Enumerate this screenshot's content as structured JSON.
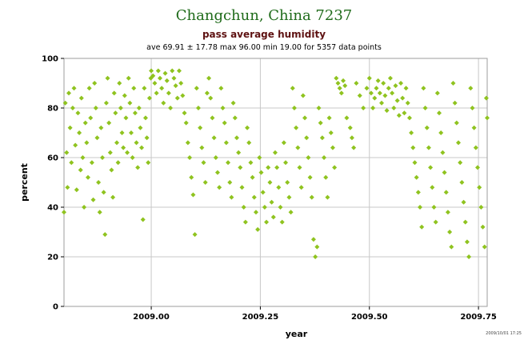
{
  "chart_data": {
    "type": "scatter",
    "title": "Changchun, China 7237",
    "subtitle": "pass average humidity",
    "stats": "ave 69.91 ± 17.78 max 96.00 min 19.00 for 5357 data points",
    "xlabel": "year",
    "ylabel": "percent",
    "stamp": "2009/10/01 17:25",
    "xlim": [
      2008.8,
      2009.77
    ],
    "ylim": [
      0,
      100
    ],
    "x_ticks": [
      {
        "value": 2009.0,
        "label": "2009.00"
      },
      {
        "value": 2009.25,
        "label": "2009.25"
      },
      {
        "value": 2009.5,
        "label": "2009.50"
      },
      {
        "value": 2009.75,
        "label": "2009.75"
      }
    ],
    "y_ticks": [
      0,
      20,
      40,
      60,
      80,
      100
    ],
    "grid": true,
    "marker": "diamond",
    "point_color": "#8fc31f",
    "series": [
      {
        "points": [
          [
            2008.8,
            38
          ],
          [
            2008.803,
            82
          ],
          [
            2008.806,
            62
          ],
          [
            2008.808,
            48
          ],
          [
            2008.811,
            86
          ],
          [
            2008.814,
            72
          ],
          [
            2008.817,
            58
          ],
          [
            2008.82,
            80
          ],
          [
            2008.823,
            88
          ],
          [
            2008.826,
            65
          ],
          [
            2008.829,
            47
          ],
          [
            2008.832,
            78
          ],
          [
            2008.835,
            70
          ],
          [
            2008.838,
            55
          ],
          [
            2008.84,
            84
          ],
          [
            2008.843,
            60
          ],
          [
            2008.846,
            40
          ],
          [
            2008.849,
            74
          ],
          [
            2008.852,
            66
          ],
          [
            2008.855,
            52
          ],
          [
            2008.858,
            88
          ],
          [
            2008.861,
            76
          ],
          [
            2008.864,
            58
          ],
          [
            2008.867,
            43
          ],
          [
            2008.87,
            90
          ],
          [
            2008.873,
            80
          ],
          [
            2008.876,
            68
          ],
          [
            2008.879,
            50
          ],
          [
            2008.882,
            38
          ],
          [
            2008.885,
            72
          ],
          [
            2008.888,
            60
          ],
          [
            2008.891,
            46
          ],
          [
            2008.894,
            29
          ],
          [
            2008.897,
            82
          ],
          [
            2008.9,
            92
          ],
          [
            2008.903,
            74
          ],
          [
            2008.906,
            62
          ],
          [
            2008.909,
            55
          ],
          [
            2008.912,
            44
          ],
          [
            2008.915,
            86
          ],
          [
            2008.918,
            78
          ],
          [
            2008.921,
            66
          ],
          [
            2008.924,
            58
          ],
          [
            2008.927,
            90
          ],
          [
            2008.93,
            80
          ],
          [
            2008.933,
            70
          ],
          [
            2008.936,
            64
          ],
          [
            2008.939,
            85
          ],
          [
            2008.942,
            76
          ],
          [
            2008.945,
            62
          ],
          [
            2008.948,
            92
          ],
          [
            2008.951,
            82
          ],
          [
            2008.954,
            70
          ],
          [
            2008.957,
            60
          ],
          [
            2008.96,
            88
          ],
          [
            2008.963,
            78
          ],
          [
            2008.966,
            66
          ],
          [
            2008.969,
            56
          ],
          [
            2008.972,
            80
          ],
          [
            2008.975,
            72
          ],
          [
            2008.978,
            64
          ],
          [
            2008.981,
            35
          ],
          [
            2008.984,
            88
          ],
          [
            2008.987,
            76
          ],
          [
            2008.99,
            68
          ],
          [
            2008.993,
            58
          ],
          [
            2008.996,
            84
          ],
          [
            2008.999,
            92
          ],
          [
            2009.0,
            95
          ],
          [
            2009.004,
            93
          ],
          [
            2009.008,
            90
          ],
          [
            2009.012,
            86
          ],
          [
            2009.016,
            95
          ],
          [
            2009.02,
            92
          ],
          [
            2009.024,
            88
          ],
          [
            2009.028,
            82
          ],
          [
            2009.032,
            94
          ],
          [
            2009.036,
            91
          ],
          [
            2009.04,
            86
          ],
          [
            2009.044,
            80
          ],
          [
            2009.048,
            95
          ],
          [
            2009.052,
            92
          ],
          [
            2009.056,
            89
          ],
          [
            2009.06,
            84
          ],
          [
            2009.064,
            95
          ],
          [
            2009.068,
            90
          ],
          [
            2009.072,
            85
          ],
          [
            2009.076,
            78
          ],
          [
            2009.08,
            74
          ],
          [
            2009.084,
            66
          ],
          [
            2009.088,
            60
          ],
          [
            2009.092,
            52
          ],
          [
            2009.096,
            45
          ],
          [
            2009.1,
            29
          ],
          [
            2009.104,
            88
          ],
          [
            2009.108,
            80
          ],
          [
            2009.112,
            72
          ],
          [
            2009.116,
            64
          ],
          [
            2009.12,
            58
          ],
          [
            2009.124,
            50
          ],
          [
            2009.128,
            86
          ],
          [
            2009.132,
            92
          ],
          [
            2009.136,
            84
          ],
          [
            2009.14,
            76
          ],
          [
            2009.144,
            68
          ],
          [
            2009.148,
            60
          ],
          [
            2009.152,
            54
          ],
          [
            2009.156,
            48
          ],
          [
            2009.16,
            88
          ],
          [
            2009.164,
            80
          ],
          [
            2009.168,
            74
          ],
          [
            2009.172,
            66
          ],
          [
            2009.176,
            58
          ],
          [
            2009.18,
            50
          ],
          [
            2009.184,
            44
          ],
          [
            2009.188,
            82
          ],
          [
            2009.192,
            76
          ],
          [
            2009.196,
            68
          ],
          [
            2009.2,
            62
          ],
          [
            2009.204,
            56
          ],
          [
            2009.208,
            48
          ],
          [
            2009.212,
            40
          ],
          [
            2009.216,
            34
          ],
          [
            2009.22,
            72
          ],
          [
            2009.224,
            66
          ],
          [
            2009.228,
            58
          ],
          [
            2009.232,
            52
          ],
          [
            2009.236,
            44
          ],
          [
            2009.24,
            38
          ],
          [
            2009.244,
            31
          ],
          [
            2009.248,
            60
          ],
          [
            2009.252,
            54
          ],
          [
            2009.256,
            46
          ],
          [
            2009.26,
            40
          ],
          [
            2009.264,
            34
          ],
          [
            2009.268,
            56
          ],
          [
            2009.272,
            50
          ],
          [
            2009.276,
            42
          ],
          [
            2009.28,
            36
          ],
          [
            2009.284,
            62
          ],
          [
            2009.288,
            56
          ],
          [
            2009.292,
            48
          ],
          [
            2009.296,
            40
          ],
          [
            2009.3,
            34
          ],
          [
            2009.304,
            66
          ],
          [
            2009.308,
            58
          ],
          [
            2009.312,
            50
          ],
          [
            2009.316,
            44
          ],
          [
            2009.32,
            38
          ],
          [
            2009.324,
            88
          ],
          [
            2009.328,
            80
          ],
          [
            2009.332,
            72
          ],
          [
            2009.336,
            64
          ],
          [
            2009.34,
            56
          ],
          [
            2009.344,
            48
          ],
          [
            2009.348,
            85
          ],
          [
            2009.352,
            76
          ],
          [
            2009.356,
            68
          ],
          [
            2009.36,
            60
          ],
          [
            2009.364,
            52
          ],
          [
            2009.368,
            44
          ],
          [
            2009.372,
            27
          ],
          [
            2009.376,
            20
          ],
          [
            2009.38,
            24
          ],
          [
            2009.384,
            80
          ],
          [
            2009.388,
            74
          ],
          [
            2009.392,
            68
          ],
          [
            2009.396,
            60
          ],
          [
            2009.4,
            52
          ],
          [
            2009.404,
            44
          ],
          [
            2009.408,
            76
          ],
          [
            2009.412,
            70
          ],
          [
            2009.416,
            64
          ],
          [
            2009.42,
            56
          ],
          [
            2009.424,
            92
          ],
          [
            2009.428,
            90
          ],
          [
            2009.432,
            88
          ],
          [
            2009.436,
            86
          ],
          [
            2009.44,
            91
          ],
          [
            2009.444,
            89
          ],
          [
            2009.448,
            76
          ],
          [
            2009.456,
            72
          ],
          [
            2009.46,
            68
          ],
          [
            2009.464,
            64
          ],
          [
            2009.47,
            90
          ],
          [
            2009.478,
            85
          ],
          [
            2009.486,
            80
          ],
          [
            2009.494,
            88
          ],
          [
            2009.5,
            92
          ],
          [
            2009.504,
            86
          ],
          [
            2009.508,
            80
          ],
          [
            2009.512,
            84
          ],
          [
            2009.516,
            88
          ],
          [
            2009.52,
            91
          ],
          [
            2009.524,
            86
          ],
          [
            2009.528,
            82
          ],
          [
            2009.532,
            90
          ],
          [
            2009.536,
            85
          ],
          [
            2009.54,
            79
          ],
          [
            2009.544,
            88
          ],
          [
            2009.548,
            92
          ],
          [
            2009.552,
            86
          ],
          [
            2009.556,
            80
          ],
          [
            2009.56,
            89
          ],
          [
            2009.564,
            83
          ],
          [
            2009.568,
            77
          ],
          [
            2009.572,
            90
          ],
          [
            2009.576,
            84
          ],
          [
            2009.58,
            78
          ],
          [
            2009.584,
            88
          ],
          [
            2009.588,
            82
          ],
          [
            2009.592,
            76
          ],
          [
            2009.596,
            70
          ],
          [
            2009.6,
            64
          ],
          [
            2009.604,
            58
          ],
          [
            2009.608,
            52
          ],
          [
            2009.612,
            46
          ],
          [
            2009.616,
            40
          ],
          [
            2009.62,
            32
          ],
          [
            2009.624,
            88
          ],
          [
            2009.628,
            80
          ],
          [
            2009.632,
            72
          ],
          [
            2009.636,
            64
          ],
          [
            2009.64,
            56
          ],
          [
            2009.644,
            48
          ],
          [
            2009.648,
            40
          ],
          [
            2009.652,
            34
          ],
          [
            2009.656,
            86
          ],
          [
            2009.66,
            78
          ],
          [
            2009.664,
            70
          ],
          [
            2009.668,
            62
          ],
          [
            2009.672,
            54
          ],
          [
            2009.676,
            46
          ],
          [
            2009.68,
            38
          ],
          [
            2009.684,
            30
          ],
          [
            2009.688,
            24
          ],
          [
            2009.692,
            90
          ],
          [
            2009.696,
            82
          ],
          [
            2009.7,
            74
          ],
          [
            2009.704,
            66
          ],
          [
            2009.708,
            58
          ],
          [
            2009.712,
            50
          ],
          [
            2009.716,
            42
          ],
          [
            2009.72,
            34
          ],
          [
            2009.724,
            26
          ],
          [
            2009.728,
            20
          ],
          [
            2009.732,
            88
          ],
          [
            2009.736,
            80
          ],
          [
            2009.74,
            72
          ],
          [
            2009.744,
            64
          ],
          [
            2009.748,
            56
          ],
          [
            2009.752,
            48
          ],
          [
            2009.756,
            40
          ],
          [
            2009.76,
            32
          ],
          [
            2009.764,
            24
          ],
          [
            2009.768,
            84
          ],
          [
            2009.77,
            76
          ]
        ]
      }
    ]
  }
}
